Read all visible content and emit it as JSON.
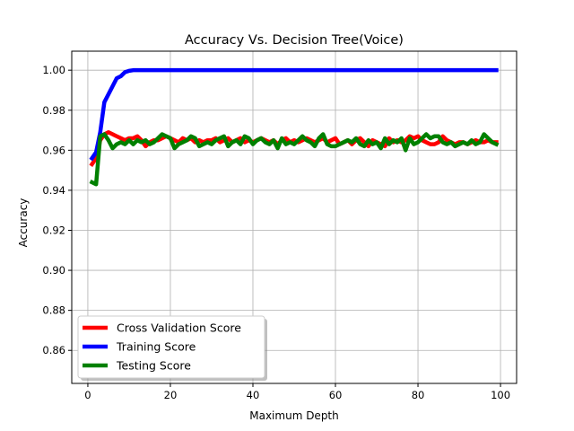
{
  "chart_data": {
    "type": "line",
    "title": "Accuracy Vs. Decision Tree(Voice)",
    "xlabel": "Maximum Depth",
    "ylabel": "Accuracy",
    "xlim": [
      -3.9,
      103.9
    ],
    "ylim": [
      0.8435,
      1.0095
    ],
    "xticks": [
      0,
      20,
      40,
      60,
      80,
      100
    ],
    "xtick_labels": [
      "0",
      "20",
      "40",
      "60",
      "80",
      "100"
    ],
    "yticks": [
      0.86,
      0.88,
      0.9,
      0.92,
      0.94,
      0.96,
      0.98,
      1.0
    ],
    "ytick_labels": [
      "0.86",
      "0.88",
      "0.90",
      "0.92",
      "0.94",
      "0.96",
      "0.98",
      "1.00"
    ],
    "grid": true,
    "legend_position": "lower-left",
    "series": [
      {
        "name": "Cross Validation Score",
        "color": "#ff0000",
        "x": [
          1,
          2,
          3,
          4,
          5,
          6,
          7,
          8,
          9,
          10,
          11,
          12,
          13,
          14,
          15,
          16,
          17,
          18,
          19,
          20,
          21,
          22,
          23,
          24,
          25,
          26,
          27,
          28,
          29,
          30,
          31,
          32,
          33,
          34,
          35,
          36,
          37,
          38,
          39,
          40,
          41,
          42,
          43,
          44,
          45,
          46,
          47,
          48,
          49,
          50,
          51,
          52,
          53,
          54,
          55,
          56,
          57,
          58,
          59,
          60,
          61,
          62,
          63,
          64,
          65,
          66,
          67,
          68,
          69,
          70,
          71,
          72,
          73,
          74,
          75,
          76,
          77,
          78,
          79,
          80,
          81,
          82,
          83,
          84,
          85,
          86,
          87,
          88,
          89,
          90,
          91,
          92,
          93,
          94,
          95,
          96,
          97,
          98,
          99
        ],
        "values": [
          0.953,
          0.956,
          0.965,
          0.968,
          0.969,
          0.968,
          0.967,
          0.966,
          0.965,
          0.966,
          0.966,
          0.967,
          0.965,
          0.962,
          0.964,
          0.965,
          0.965,
          0.966,
          0.967,
          0.966,
          0.965,
          0.964,
          0.966,
          0.965,
          0.966,
          0.964,
          0.965,
          0.964,
          0.965,
          0.965,
          0.966,
          0.964,
          0.965,
          0.966,
          0.964,
          0.965,
          0.966,
          0.964,
          0.965,
          0.964,
          0.965,
          0.966,
          0.965,
          0.964,
          0.965,
          0.963,
          0.965,
          0.966,
          0.964,
          0.965,
          0.964,
          0.965,
          0.966,
          0.965,
          0.964,
          0.965,
          0.966,
          0.964,
          0.965,
          0.966,
          0.963,
          0.964,
          0.965,
          0.963,
          0.965,
          0.966,
          0.964,
          0.962,
          0.965,
          0.964,
          0.963,
          0.962,
          0.966,
          0.964,
          0.965,
          0.964,
          0.965,
          0.967,
          0.966,
          0.967,
          0.965,
          0.964,
          0.963,
          0.963,
          0.964,
          0.967,
          0.965,
          0.964,
          0.963,
          0.964,
          0.964,
          0.963,
          0.964,
          0.965,
          0.964,
          0.964,
          0.965,
          0.964,
          0.964
        ]
      },
      {
        "name": "Training Score",
        "color": "#0000ff",
        "x": [
          1,
          2,
          3,
          4,
          5,
          6,
          7,
          8,
          9,
          10,
          11,
          12,
          13,
          14,
          15,
          16,
          17,
          18,
          19,
          20,
          21,
          22,
          23,
          24,
          25,
          26,
          27,
          28,
          29,
          30,
          31,
          32,
          33,
          34,
          35,
          36,
          37,
          38,
          39,
          40,
          41,
          42,
          43,
          44,
          45,
          46,
          47,
          48,
          49,
          50,
          51,
          52,
          53,
          54,
          55,
          56,
          57,
          58,
          59,
          60,
          61,
          62,
          63,
          64,
          65,
          66,
          67,
          68,
          69,
          70,
          71,
          72,
          73,
          74,
          75,
          76,
          77,
          78,
          79,
          80,
          81,
          82,
          83,
          84,
          85,
          86,
          87,
          88,
          89,
          90,
          91,
          92,
          93,
          94,
          95,
          96,
          97,
          98,
          99
        ],
        "values": [
          0.956,
          0.959,
          0.969,
          0.984,
          0.988,
          0.992,
          0.996,
          0.997,
          0.999,
          0.9997,
          1.0,
          1.0,
          1.0,
          1.0,
          1.0,
          1.0,
          1.0,
          1.0,
          1.0,
          1.0,
          1.0,
          1.0,
          1.0,
          1.0,
          1.0,
          1.0,
          1.0,
          1.0,
          1.0,
          1.0,
          1.0,
          1.0,
          1.0,
          1.0,
          1.0,
          1.0,
          1.0,
          1.0,
          1.0,
          1.0,
          1.0,
          1.0,
          1.0,
          1.0,
          1.0,
          1.0,
          1.0,
          1.0,
          1.0,
          1.0,
          1.0,
          1.0,
          1.0,
          1.0,
          1.0,
          1.0,
          1.0,
          1.0,
          1.0,
          1.0,
          1.0,
          1.0,
          1.0,
          1.0,
          1.0,
          1.0,
          1.0,
          1.0,
          1.0,
          1.0,
          1.0,
          1.0,
          1.0,
          1.0,
          1.0,
          1.0,
          1.0,
          1.0,
          1.0,
          1.0,
          1.0,
          1.0,
          1.0,
          1.0,
          1.0,
          1.0,
          1.0,
          1.0,
          1.0,
          1.0,
          1.0,
          1.0,
          1.0,
          1.0,
          1.0,
          1.0,
          1.0,
          1.0,
          1.0
        ]
      },
      {
        "name": "Testing Score",
        "color": "#008000",
        "x": [
          1,
          2,
          3,
          4,
          5,
          6,
          7,
          8,
          9,
          10,
          11,
          12,
          13,
          14,
          15,
          16,
          17,
          18,
          19,
          20,
          21,
          22,
          23,
          24,
          25,
          26,
          27,
          28,
          29,
          30,
          31,
          32,
          33,
          34,
          35,
          36,
          37,
          38,
          39,
          40,
          41,
          42,
          43,
          44,
          45,
          46,
          47,
          48,
          49,
          50,
          51,
          52,
          53,
          54,
          55,
          56,
          57,
          58,
          59,
          60,
          61,
          62,
          63,
          64,
          65,
          66,
          67,
          68,
          69,
          70,
          71,
          72,
          73,
          74,
          75,
          76,
          77,
          78,
          79,
          80,
          81,
          82,
          83,
          84,
          85,
          86,
          87,
          88,
          89,
          90,
          91,
          92,
          93,
          94,
          95,
          96,
          97,
          98,
          99
        ],
        "values": [
          0.944,
          0.943,
          0.967,
          0.968,
          0.965,
          0.961,
          0.963,
          0.964,
          0.963,
          0.965,
          0.963,
          0.965,
          0.964,
          0.965,
          0.963,
          0.964,
          0.966,
          0.968,
          0.967,
          0.966,
          0.961,
          0.963,
          0.964,
          0.965,
          0.967,
          0.966,
          0.962,
          0.963,
          0.964,
          0.963,
          0.965,
          0.966,
          0.967,
          0.962,
          0.964,
          0.965,
          0.963,
          0.967,
          0.966,
          0.963,
          0.965,
          0.966,
          0.964,
          0.963,
          0.965,
          0.961,
          0.966,
          0.963,
          0.964,
          0.963,
          0.965,
          0.967,
          0.965,
          0.964,
          0.962,
          0.966,
          0.968,
          0.963,
          0.962,
          0.962,
          0.963,
          0.964,
          0.965,
          0.964,
          0.966,
          0.963,
          0.962,
          0.965,
          0.963,
          0.964,
          0.961,
          0.966,
          0.963,
          0.965,
          0.964,
          0.966,
          0.96,
          0.966,
          0.963,
          0.964,
          0.966,
          0.968,
          0.966,
          0.967,
          0.967,
          0.964,
          0.963,
          0.964,
          0.962,
          0.963,
          0.964,
          0.963,
          0.965,
          0.963,
          0.964,
          0.968,
          0.966,
          0.964,
          0.963
        ]
      }
    ]
  }
}
